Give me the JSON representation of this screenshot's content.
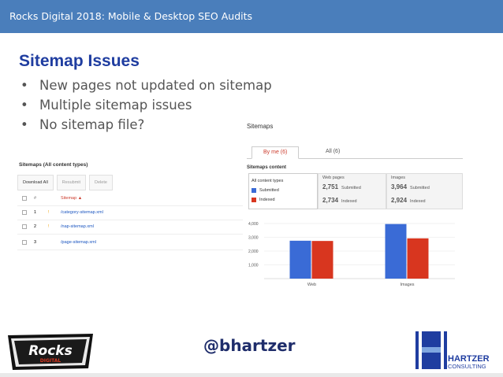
{
  "header": {
    "title": "Rocks Digital 2018: Mobile & Desktop SEO Audits"
  },
  "colors": {
    "header_bg": "#4a7ebb",
    "title": "#1f3da0",
    "submitted": "#3a6bd6",
    "indexed": "#d8361f",
    "handle": "#1f2d6b"
  },
  "slide": {
    "title": "Sitemap Issues",
    "bullet_symbol": "•",
    "bullets": [
      "New pages not updated on sitemap",
      "Multiple sitemap issues",
      "No sitemap file?"
    ]
  },
  "left_screenshot": {
    "heading": "Sitemaps (All content types)",
    "toolbar": [
      "Download All",
      "Resubmit",
      "Delete"
    ],
    "columns": [
      "#",
      "Sitemap ▲"
    ],
    "rows": [
      {
        "num": "1",
        "warn": "!",
        "file": "/category-sitemap.xml"
      },
      {
        "num": "2",
        "warn": "!",
        "file": "/nap-sitemap.xml"
      },
      {
        "num": "3",
        "warn": "",
        "file": "/page-sitemap.xml"
      }
    ]
  },
  "right_screenshot": {
    "title": "Sitemaps",
    "tabs": [
      "By me (6)",
      "All (6)"
    ],
    "section_label": "Sitemaps content",
    "legend_header": "All content types",
    "legend": [
      "Submitted",
      "Indexed"
    ],
    "web_pages": {
      "label": "Web pages",
      "submitted": "2,751",
      "indexed": "2,734",
      "submitted_label": "Submitted",
      "indexed_label": "Indexed"
    },
    "images": {
      "label": "Images",
      "submitted": "3,964",
      "indexed": "2,924",
      "submitted_label": "Submitted",
      "indexed_label": "Indexed"
    }
  },
  "chart_data": {
    "type": "bar",
    "categories": [
      "Web",
      "Images"
    ],
    "series": [
      {
        "name": "Submitted",
        "values": [
          2751,
          3964
        ],
        "color": "#3a6bd6"
      },
      {
        "name": "Indexed",
        "values": [
          2734,
          2924
        ],
        "color": "#d8361f"
      }
    ],
    "yticks": [
      "4,000",
      "3,000",
      "2,000",
      "1,000"
    ],
    "ylim": [
      0,
      4000
    ],
    "grid": true
  },
  "footer": {
    "handle": "@bhartzer",
    "logo_left_text": "Rocks DIGITAL",
    "logo_right_text": "HARTZER CONSULTING"
  }
}
